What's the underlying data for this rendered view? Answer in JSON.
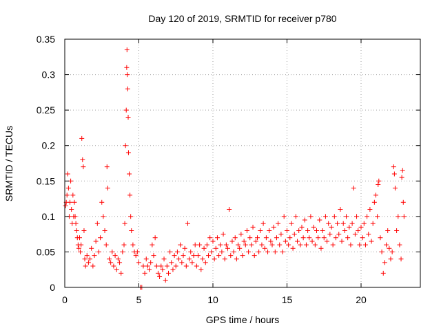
{
  "chart_data": {
    "type": "scatter",
    "title": "Day 120 of 2019, SRMTID for receiver p780",
    "xlabel": "GPS time / hours",
    "ylabel": "SRMTID / TECUs",
    "xlim": [
      0,
      24
    ],
    "ylim": [
      0,
      0.35
    ],
    "x_ticks": [
      0,
      5,
      10,
      15,
      20
    ],
    "x_tick_labels": [
      "0",
      "5",
      "10",
      "15",
      "20"
    ],
    "y_ticks": [
      0,
      0.05,
      0.1,
      0.15,
      0.2,
      0.25,
      0.3,
      0.35
    ],
    "y_tick_labels": [
      "0",
      "0.05",
      "0.1",
      "0.15",
      "0.2",
      "0.25",
      "0.3",
      "0.35"
    ],
    "grid": true,
    "marker": "+",
    "color": "#ff0000",
    "series": [
      {
        "name": "SRMTID",
        "points": [
          [
            0.05,
            0.115
          ],
          [
            0.1,
            0.12
          ],
          [
            0.15,
            0.13
          ],
          [
            0.2,
            0.16
          ],
          [
            0.25,
            0.14
          ],
          [
            0.3,
            0.1
          ],
          [
            0.35,
            0.12
          ],
          [
            0.4,
            0.15
          ],
          [
            0.45,
            0.11
          ],
          [
            0.5,
            0.09
          ],
          [
            0.55,
            0.13
          ],
          [
            0.6,
            0.1
          ],
          [
            0.65,
            0.12
          ],
          [
            0.7,
            0.1
          ],
          [
            0.75,
            0.09
          ],
          [
            0.8,
            0.08
          ],
          [
            0.85,
            0.07
          ],
          [
            0.9,
            0.06
          ],
          [
            0.95,
            0.055
          ],
          [
            1.0,
            0.07
          ],
          [
            1.05,
            0.05
          ],
          [
            1.1,
            0.06
          ],
          [
            1.15,
            0.21
          ],
          [
            1.2,
            0.18
          ],
          [
            1.25,
            0.17
          ],
          [
            1.3,
            0.08
          ],
          [
            1.35,
            0.04
          ],
          [
            1.4,
            0.03
          ],
          [
            1.5,
            0.045
          ],
          [
            1.6,
            0.035
          ],
          [
            1.7,
            0.04
          ],
          [
            1.8,
            0.055
          ],
          [
            1.9,
            0.03
          ],
          [
            2.0,
            0.045
          ],
          [
            2.1,
            0.065
          ],
          [
            2.2,
            0.09
          ],
          [
            2.3,
            0.05
          ],
          [
            2.4,
            0.07
          ],
          [
            2.5,
            0.12
          ],
          [
            2.6,
            0.1
          ],
          [
            2.7,
            0.08
          ],
          [
            2.8,
            0.06
          ],
          [
            2.85,
            0.17
          ],
          [
            2.9,
            0.14
          ],
          [
            3.0,
            0.04
          ],
          [
            3.1,
            0.035
          ],
          [
            3.2,
            0.05
          ],
          [
            3.3,
            0.03
          ],
          [
            3.4,
            0.045
          ],
          [
            3.5,
            0.025
          ],
          [
            3.6,
            0.04
          ],
          [
            3.7,
            0.035
          ],
          [
            3.8,
            0.02
          ],
          [
            3.9,
            0.05
          ],
          [
            4.0,
            0.06
          ],
          [
            4.05,
            0.09
          ],
          [
            4.1,
            0.2
          ],
          [
            4.15,
            0.25
          ],
          [
            4.18,
            0.31
          ],
          [
            4.2,
            0.335
          ],
          [
            4.22,
            0.3
          ],
          [
            4.25,
            0.28
          ],
          [
            4.28,
            0.24
          ],
          [
            4.3,
            0.19
          ],
          [
            4.35,
            0.16
          ],
          [
            4.4,
            0.13
          ],
          [
            4.45,
            0.1
          ],
          [
            4.5,
            0.08
          ],
          [
            4.6,
            0.06
          ],
          [
            4.7,
            0.05
          ],
          [
            4.8,
            0.045
          ],
          [
            4.9,
            0.05
          ],
          [
            5.0,
            0.035
          ],
          [
            5.1,
            0.0
          ],
          [
            5.2,
            0.0
          ],
          [
            5.3,
            0.03
          ],
          [
            5.4,
            0.02
          ],
          [
            5.5,
            0.04
          ],
          [
            5.6,
            0.03
          ],
          [
            5.7,
            0.025
          ],
          [
            5.8,
            0.035
          ],
          [
            5.9,
            0.06
          ],
          [
            6.0,
            0.045
          ],
          [
            6.1,
            0.07
          ],
          [
            6.2,
            0.03
          ],
          [
            6.3,
            0.02
          ],
          [
            6.4,
            0.015
          ],
          [
            6.5,
            0.03
          ],
          [
            6.6,
            0.025
          ],
          [
            6.7,
            0.04
          ],
          [
            6.8,
            0.01
          ],
          [
            6.9,
            0.03
          ],
          [
            7.0,
            0.02
          ],
          [
            7.1,
            0.05
          ],
          [
            7.2,
            0.035
          ],
          [
            7.3,
            0.025
          ],
          [
            7.4,
            0.045
          ],
          [
            7.5,
            0.03
          ],
          [
            7.6,
            0.05
          ],
          [
            7.7,
            0.04
          ],
          [
            7.8,
            0.06
          ],
          [
            7.9,
            0.035
          ],
          [
            8.0,
            0.045
          ],
          [
            8.1,
            0.055
          ],
          [
            8.2,
            0.03
          ],
          [
            8.3,
            0.09
          ],
          [
            8.4,
            0.04
          ],
          [
            8.5,
            0.05
          ],
          [
            8.6,
            0.035
          ],
          [
            8.7,
            0.045
          ],
          [
            8.8,
            0.06
          ],
          [
            8.9,
            0.03
          ],
          [
            9.0,
            0.045
          ],
          [
            9.1,
            0.06
          ],
          [
            9.2,
            0.025
          ],
          [
            9.3,
            0.04
          ],
          [
            9.4,
            0.055
          ],
          [
            9.5,
            0.035
          ],
          [
            9.6,
            0.06
          ],
          [
            9.7,
            0.045
          ],
          [
            9.8,
            0.07
          ],
          [
            9.9,
            0.05
          ],
          [
            10.0,
            0.065
          ],
          [
            10.1,
            0.04
          ],
          [
            10.2,
            0.055
          ],
          [
            10.3,
            0.07
          ],
          [
            10.4,
            0.045
          ],
          [
            10.5,
            0.06
          ],
          [
            10.6,
            0.05
          ],
          [
            10.7,
            0.075
          ],
          [
            10.8,
            0.04
          ],
          [
            10.9,
            0.06
          ],
          [
            11.0,
            0.055
          ],
          [
            11.1,
            0.11
          ],
          [
            11.2,
            0.045
          ],
          [
            11.3,
            0.065
          ],
          [
            11.4,
            0.05
          ],
          [
            11.5,
            0.07
          ],
          [
            11.6,
            0.04
          ],
          [
            11.7,
            0.06
          ],
          [
            11.8,
            0.055
          ],
          [
            11.9,
            0.075
          ],
          [
            12.0,
            0.045
          ],
          [
            12.1,
            0.065
          ],
          [
            12.2,
            0.06
          ],
          [
            12.3,
            0.08
          ],
          [
            12.4,
            0.05
          ],
          [
            12.5,
            0.07
          ],
          [
            12.6,
            0.06
          ],
          [
            12.7,
            0.085
          ],
          [
            12.8,
            0.045
          ],
          [
            12.9,
            0.065
          ],
          [
            13.0,
            0.07
          ],
          [
            13.1,
            0.05
          ],
          [
            13.2,
            0.08
          ],
          [
            13.3,
            0.06
          ],
          [
            13.4,
            0.09
          ],
          [
            13.5,
            0.055
          ],
          [
            13.6,
            0.07
          ],
          [
            13.7,
            0.05
          ],
          [
            13.8,
            0.08
          ],
          [
            13.9,
            0.065
          ],
          [
            14.0,
            0.06
          ],
          [
            14.1,
            0.085
          ],
          [
            14.2,
            0.05
          ],
          [
            14.3,
            0.07
          ],
          [
            14.4,
            0.09
          ],
          [
            14.5,
            0.06
          ],
          [
            14.6,
            0.075
          ],
          [
            14.7,
            0.05
          ],
          [
            14.8,
            0.1
          ],
          [
            14.9,
            0.065
          ],
          [
            15.0,
            0.08
          ],
          [
            15.1,
            0.06
          ],
          [
            15.2,
            0.07
          ],
          [
            15.3,
            0.09
          ],
          [
            15.4,
            0.055
          ],
          [
            15.5,
            0.075
          ],
          [
            15.6,
            0.1
          ],
          [
            15.7,
            0.065
          ],
          [
            15.8,
            0.08
          ],
          [
            15.9,
            0.06
          ],
          [
            16.0,
            0.085
          ],
          [
            16.1,
            0.07
          ],
          [
            16.2,
            0.095
          ],
          [
            16.3,
            0.06
          ],
          [
            16.4,
            0.08
          ],
          [
            16.5,
            0.07
          ],
          [
            16.6,
            0.1
          ],
          [
            16.7,
            0.065
          ],
          [
            16.8,
            0.085
          ],
          [
            16.9,
            0.06
          ],
          [
            17.0,
            0.08
          ],
          [
            17.1,
            0.07
          ],
          [
            17.2,
            0.095
          ],
          [
            17.3,
            0.055
          ],
          [
            17.4,
            0.08
          ],
          [
            17.5,
            0.07
          ],
          [
            17.6,
            0.1
          ],
          [
            17.7,
            0.065
          ],
          [
            17.8,
            0.09
          ],
          [
            17.9,
            0.075
          ],
          [
            18.0,
            0.085
          ],
          [
            18.1,
            0.06
          ],
          [
            18.2,
            0.1
          ],
          [
            18.3,
            0.07
          ],
          [
            18.4,
            0.09
          ],
          [
            18.5,
            0.075
          ],
          [
            18.6,
            0.11
          ],
          [
            18.7,
            0.065
          ],
          [
            18.8,
            0.09
          ],
          [
            18.9,
            0.08
          ],
          [
            19.0,
            0.1
          ],
          [
            19.1,
            0.07
          ],
          [
            19.2,
            0.085
          ],
          [
            19.3,
            0.06
          ],
          [
            19.4,
            0.09
          ],
          [
            19.5,
            0.14
          ],
          [
            19.6,
            0.075
          ],
          [
            19.7,
            0.1
          ],
          [
            19.8,
            0.08
          ],
          [
            19.9,
            0.06
          ],
          [
            20.0,
            0.085
          ],
          [
            20.1,
            0.07
          ],
          [
            20.2,
            0.09
          ],
          [
            20.3,
            0.06
          ],
          [
            20.4,
            0.1
          ],
          [
            20.5,
            0.075
          ],
          [
            20.6,
            0.11
          ],
          [
            20.7,
            0.065
          ],
          [
            20.8,
            0.09
          ],
          [
            20.9,
            0.12
          ],
          [
            21.0,
            0.13
          ],
          [
            21.1,
            0.1
          ],
          [
            21.15,
            0.145
          ],
          [
            21.2,
            0.15
          ],
          [
            21.3,
            0.07
          ],
          [
            21.4,
            0.05
          ],
          [
            21.5,
            0.02
          ],
          [
            21.6,
            0.035
          ],
          [
            21.7,
            0.06
          ],
          [
            21.8,
            0.08
          ],
          [
            21.9,
            0.055
          ],
          [
            22.0,
            0.04
          ],
          [
            22.1,
            0.05
          ],
          [
            22.2,
            0.17
          ],
          [
            22.25,
            0.16
          ],
          [
            22.3,
            0.14
          ],
          [
            22.4,
            0.08
          ],
          [
            22.5,
            0.1
          ],
          [
            22.6,
            0.06
          ],
          [
            22.7,
            0.04
          ],
          [
            22.75,
            0.155
          ],
          [
            22.8,
            0.165
          ],
          [
            22.85,
            0.12
          ],
          [
            22.9,
            0.1
          ]
        ]
      }
    ]
  }
}
